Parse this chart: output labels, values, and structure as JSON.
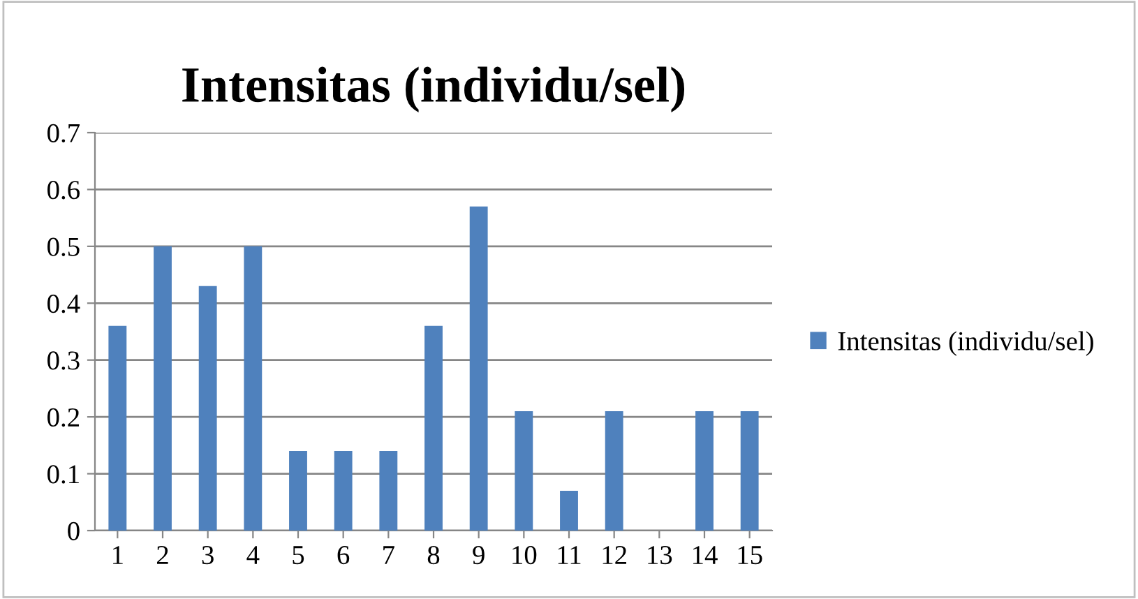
{
  "chart_data": {
    "type": "bar",
    "title": "Intensitas (individu/sel)",
    "categories": [
      "1",
      "2",
      "3",
      "4",
      "5",
      "6",
      "7",
      "8",
      "9",
      "10",
      "11",
      "12",
      "13",
      "14",
      "15"
    ],
    "series": [
      {
        "name": "Intensitas (individu/sel)",
        "color": "#4f81bd",
        "values": [
          0.36,
          0.5,
          0.43,
          0.5,
          0.14,
          0.14,
          0.14,
          0.36,
          0.57,
          0.21,
          0.07,
          0.21,
          0,
          0.21,
          0.21
        ]
      }
    ],
    "ylim": [
      0,
      0.7
    ],
    "yticks": [
      {
        "value": 0,
        "label": "0"
      },
      0.1,
      0.2,
      0.3,
      0.4,
      0.5,
      0.6,
      0.7
    ],
    "grid": "y",
    "legend": "right"
  }
}
